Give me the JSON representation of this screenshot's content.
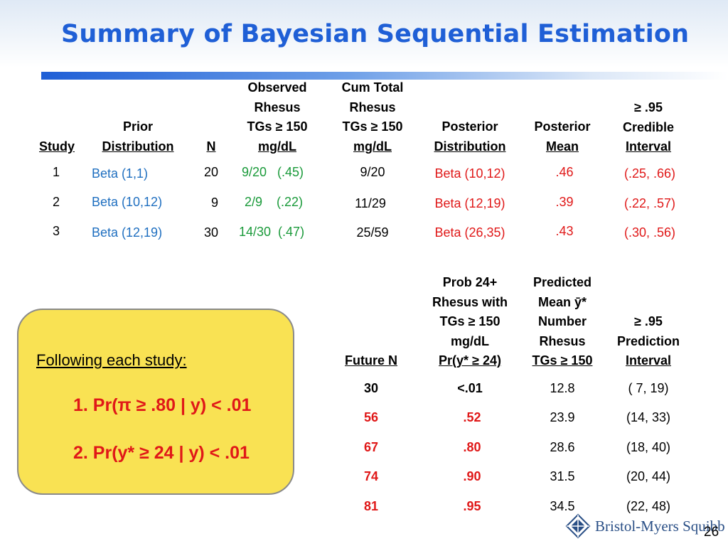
{
  "title": "Summary of Bayesian Sequential Estimation",
  "table1": {
    "headers": {
      "study": "Study",
      "prior": [
        "Prior",
        "Distribution"
      ],
      "n": "N",
      "observed": [
        "Observed",
        "Rhesus",
        "TGs ≥ 150",
        "mg/dL"
      ],
      "cum_total": [
        "Cum Total",
        "Rhesus",
        "TGs ≥ 150",
        "mg/dL"
      ],
      "posterior_dist": [
        "Posterior",
        "Distribution"
      ],
      "posterior_mean": [
        "Posterior",
        "Mean"
      ],
      "credible": [
        "≥ .95",
        "Credible",
        "Interval"
      ]
    },
    "rows": [
      {
        "study": "1",
        "prior": "Beta (1,1)",
        "n": "20",
        "observed": "9/20   (.45)",
        "cum": "9/20",
        "posterior": "Beta (10,12)",
        "mean": ".46",
        "interval": "(.25, .66)"
      },
      {
        "study": "2",
        "prior": "Beta (10,12)",
        "n": "9",
        "observed": "2/9    (.22)",
        "cum": "11/29",
        "posterior": "Beta (12,19)",
        "mean": ".39",
        "interval": "(.22, .57)"
      },
      {
        "study": "3",
        "prior": "Beta (12,19)",
        "n": "30",
        "observed": "14/30  (.47)",
        "cum": "25/59",
        "posterior": "Beta (26,35)",
        "mean": ".43",
        "interval": "(.30, .56)"
      }
    ]
  },
  "table2": {
    "headers": {
      "future_n": "Future N",
      "prob": [
        "Prob 24+",
        "Rhesus with",
        "TGs ≥ 150",
        "mg/dL",
        "Pr(y* ≥ 24)"
      ],
      "predicted": [
        "Predicted",
        "Mean ȳ*",
        "Number",
        "Rhesus",
        "TGs ≥ 150"
      ],
      "prediction": [
        "≥ .95",
        "Prediction",
        "Interval"
      ]
    },
    "rows": [
      {
        "n": "30",
        "prob": "<.01",
        "mean": "12.8",
        "interval": "( 7, 19)"
      },
      {
        "n": "56",
        "prob": ".52",
        "mean": "23.9",
        "interval": "(14, 33)"
      },
      {
        "n": "67",
        "prob": ".80",
        "mean": "28.6",
        "interval": "(18, 40)"
      },
      {
        "n": "74",
        "prob": ".90",
        "mean": "31.5",
        "interval": "(20, 44)"
      },
      {
        "n": "81",
        "prob": ".95",
        "mean": "34.5",
        "interval": "(22, 48)"
      }
    ]
  },
  "callout": {
    "heading": "Following each study:",
    "items": [
      "1.  Pr(π ≥ .80 | y) < .01",
      "2.  Pr(y* ≥ 24 | y) < .01"
    ]
  },
  "footer": {
    "logo_text": "Bristol-Myers Squibb",
    "page_number": "26"
  },
  "colors": {
    "title": "#1f5fd6",
    "prior_blue": "#1f6fc0",
    "observed_green": "#1a9a3a",
    "posterior_red": "#e01818",
    "callout_fill": "#f9e253"
  }
}
